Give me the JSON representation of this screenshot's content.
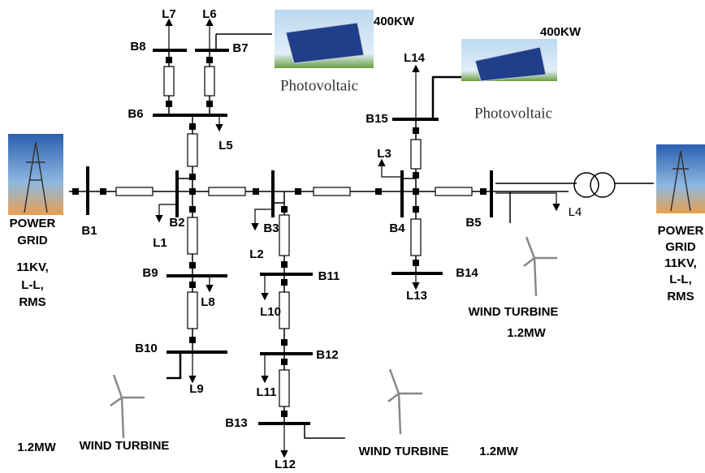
{
  "buses": [
    {
      "label": "B1"
    },
    {
      "label": "B2"
    },
    {
      "label": "B3"
    },
    {
      "label": "B4"
    },
    {
      "label": "B5"
    },
    {
      "label": "B6"
    },
    {
      "label": "B7"
    },
    {
      "label": "B8"
    },
    {
      "label": "B9"
    },
    {
      "label": "B10"
    },
    {
      "label": "B11"
    },
    {
      "label": "B12"
    },
    {
      "label": "B13"
    },
    {
      "label": "B14"
    },
    {
      "label": "B15"
    }
  ],
  "loads": [
    {
      "label": "L1"
    },
    {
      "label": "L2"
    },
    {
      "label": "L3"
    },
    {
      "label": "L4"
    },
    {
      "label": "L5"
    },
    {
      "label": "L6"
    },
    {
      "label": "L7"
    },
    {
      "label": "L8"
    },
    {
      "label": "L9"
    },
    {
      "label": "L10"
    },
    {
      "label": "L11"
    },
    {
      "label": "L12"
    },
    {
      "label": "L13"
    },
    {
      "label": "L14"
    }
  ],
  "photovoltaics": [
    {
      "label": "Photovoltaic",
      "rating": "400KW"
    },
    {
      "label": "Photovoltaic",
      "rating": "400KW"
    }
  ],
  "grids": [
    {
      "label_lines": [
        "POWER",
        "GRID"
      ],
      "voltage_lines": [
        "11KV,",
        "L-L,",
        "RMS"
      ]
    },
    {
      "label_lines": [
        "POWER",
        "GRID"
      ],
      "voltage_lines": [
        "11KV,",
        "L-L,",
        "RMS"
      ]
    }
  ],
  "wind_turbines": [
    {
      "label": "WIND TURBINE",
      "rating": "1.2MW"
    },
    {
      "label": "WIND TURBINE",
      "rating": "1.2MW"
    },
    {
      "label": "WIND TURBINE",
      "rating": "1.2MW"
    }
  ]
}
